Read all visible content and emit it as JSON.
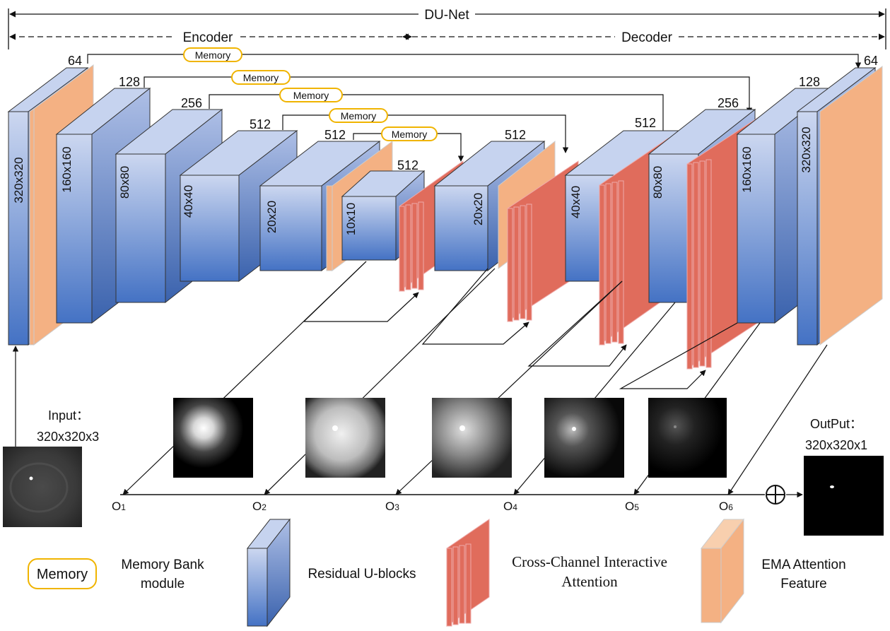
{
  "title": "DU-Net",
  "encoder_label": "Encoder",
  "decoder_label": "Decoder",
  "memory_label": "Memory",
  "channels": {
    "e1": "64",
    "e2": "128",
    "e3": "256",
    "e4": "512",
    "e5": "512",
    "bottom": "512",
    "d5": "512",
    "d4": "512",
    "d3": "256",
    "d2": "128",
    "d1": "64"
  },
  "sizes": {
    "e1": "320x320",
    "e2": "160x160",
    "e3": "80x80",
    "e4": "40x40",
    "e5": "20x20",
    "bottom": "10x10",
    "d5": "20x20",
    "d4": "40x40",
    "d3": "80x80",
    "d2": "160x160",
    "d1": "320x320"
  },
  "input": {
    "label": "Input：",
    "size": "320x320x3"
  },
  "output": {
    "label": "OutPut：",
    "size": "320x320x1"
  },
  "outputs": [
    {
      "main": "O",
      "sub": "1"
    },
    {
      "main": "O",
      "sub": "2"
    },
    {
      "main": "O",
      "sub": "3"
    },
    {
      "main": "O",
      "sub": "4"
    },
    {
      "main": "O",
      "sub": "5"
    },
    {
      "main": "O",
      "sub": "6"
    }
  ],
  "legend": {
    "memory_tag": "Memory",
    "memory_line1": "Memory Bank",
    "memory_line2": "module",
    "residual": "Residual U-blocks",
    "ccia_line1": "Cross-Channel Interactive",
    "ccia_line2": "Attention",
    "ema_line1": "EMA Attention",
    "ema_line2": "Feature"
  },
  "colors": {
    "block_top": "#c5d2ef",
    "block_bottom": "#4472c4",
    "ema": "#f4b183",
    "ccia": "#e06c5c",
    "memory_border": "#f0b400"
  }
}
